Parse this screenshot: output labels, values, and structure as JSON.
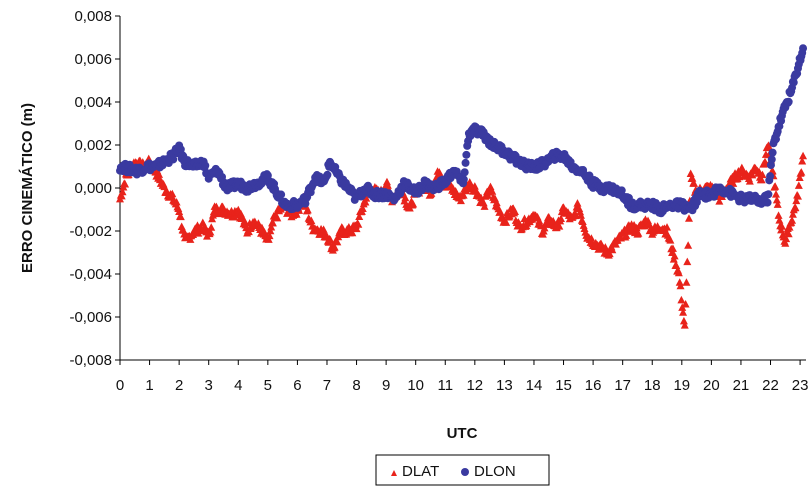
{
  "chart_data": {
    "type": "scatter",
    "xlabel": "UTC",
    "ylabel": "ERRO CINEMÁTICO (m)",
    "xlim": [
      0,
      23.2
    ],
    "ylim": [
      -0.008,
      0.008
    ],
    "xticks": [
      "0",
      "1",
      "2",
      "3",
      "4",
      "5",
      "6",
      "7",
      "8",
      "9",
      "10",
      "11",
      "12",
      "13",
      "14",
      "15",
      "16",
      "17",
      "18",
      "19",
      "20",
      "21",
      "22",
      "23"
    ],
    "yticks": [
      "0,008",
      "0,006",
      "0,004",
      "0,002",
      "0,000",
      "-0,002",
      "-0,004",
      "-0,006",
      "-0,008"
    ],
    "ytick_values": [
      0.008,
      0.006,
      0.004,
      0.002,
      0.0,
      -0.002,
      -0.004,
      -0.006,
      -0.008
    ],
    "grid": false,
    "legend_position": "bottom-center",
    "series": [
      {
        "name": "DLAT",
        "marker": "triangle",
        "color": "#e8231b",
        "x": [
          0,
          0.2,
          0.5,
          0.8,
          1.0,
          1.2,
          1.5,
          1.8,
          2.0,
          2.2,
          2.5,
          2.8,
          3.0,
          3.2,
          3.5,
          3.8,
          4.0,
          4.3,
          4.5,
          4.8,
          5.0,
          5.2,
          5.5,
          5.8,
          6.0,
          6.2,
          6.5,
          6.8,
          7.0,
          7.2,
          7.5,
          7.8,
          8.0,
          8.3,
          8.5,
          8.8,
          9.0,
          9.2,
          9.5,
          9.8,
          10.0,
          10.3,
          10.5,
          10.8,
          11.0,
          11.2,
          11.5,
          11.8,
          12.0,
          12.3,
          12.5,
          12.8,
          13.0,
          13.3,
          13.5,
          13.8,
          14.0,
          14.3,
          14.5,
          14.8,
          15.0,
          15.3,
          15.5,
          15.8,
          16.0,
          16.3,
          16.5,
          16.8,
          17.0,
          17.3,
          17.5,
          17.8,
          18.0,
          18.3,
          18.5,
          18.7,
          18.9,
          19.1,
          19.3,
          19.5,
          19.7,
          20.0,
          20.3,
          20.5,
          20.8,
          21.0,
          21.3,
          21.5,
          21.7,
          21.9,
          22.1,
          22.3,
          22.5,
          22.7,
          22.9,
          23.1
        ],
        "y": [
          -0.0005,
          0.0005,
          0.0012,
          0.001,
          0.0012,
          0.0008,
          0.0,
          -0.0005,
          -0.001,
          -0.0025,
          -0.002,
          -0.0018,
          -0.0022,
          -0.001,
          -0.001,
          -0.0012,
          -0.001,
          -0.002,
          -0.0015,
          -0.002,
          -0.0025,
          -0.0015,
          -0.0008,
          -0.0012,
          -0.001,
          -0.0005,
          -0.0018,
          -0.002,
          -0.0022,
          -0.0028,
          -0.002,
          -0.002,
          -0.0018,
          -0.0005,
          0.0,
          -0.0003,
          0.0002,
          -0.0005,
          0.0,
          -0.001,
          -0.0002,
          0.0002,
          -0.0002,
          0.0008,
          0.0002,
          0.0,
          -0.0005,
          0.0002,
          0.0,
          -0.0008,
          0.0,
          -0.001,
          -0.0015,
          -0.001,
          -0.0018,
          -0.0015,
          -0.0012,
          -0.002,
          -0.0015,
          -0.0018,
          -0.001,
          -0.0015,
          -0.0008,
          -0.0022,
          -0.0025,
          -0.0028,
          -0.003,
          -0.0025,
          -0.0022,
          -0.0018,
          -0.002,
          -0.0015,
          -0.002,
          -0.0018,
          -0.002,
          -0.003,
          -0.004,
          -0.0065,
          0.0005,
          -0.0003,
          0.0,
          0.0,
          -0.0005,
          0.0,
          0.0005,
          0.0008,
          0.0005,
          0.001,
          0.0005,
          0.002,
          0.0005,
          -0.0015,
          -0.0025,
          -0.0015,
          -0.0005,
          0.0015
        ]
      },
      {
        "name": "DLON",
        "marker": "circle",
        "color": "#3a3aa0",
        "x": [
          0,
          0.3,
          0.6,
          0.9,
          1.2,
          1.5,
          1.8,
          2.0,
          2.2,
          2.5,
          2.8,
          3.0,
          3.3,
          3.6,
          4.0,
          4.3,
          4.6,
          5.0,
          5.3,
          5.6,
          6.0,
          6.3,
          6.6,
          6.9,
          7.1,
          7.4,
          7.7,
          8.0,
          8.3,
          8.6,
          9.0,
          9.3,
          9.6,
          10.0,
          10.3,
          10.6,
          11.0,
          11.3,
          11.6,
          11.8,
          12.0,
          12.3,
          12.6,
          12.9,
          13.2,
          13.5,
          13.8,
          14.1,
          14.4,
          14.7,
          15.0,
          15.3,
          15.6,
          16.0,
          16.3,
          16.6,
          17.0,
          17.3,
          17.6,
          18.0,
          18.3,
          18.6,
          19.0,
          19.3,
          19.6,
          20.0,
          20.3,
          20.6,
          21.0,
          21.3,
          21.6,
          21.9,
          22.1,
          22.3,
          22.5,
          22.7,
          22.9,
          23.1
        ],
        "y": [
          0.001,
          0.0009,
          0.0008,
          0.001,
          0.001,
          0.0012,
          0.0015,
          0.0018,
          0.0012,
          0.001,
          0.0012,
          0.0005,
          0.0008,
          0.0,
          0.0002,
          0.0,
          0.0002,
          0.0005,
          -0.0002,
          -0.0008,
          -0.0008,
          -0.0005,
          0.0005,
          0.0002,
          0.0012,
          0.0005,
          0.0,
          -0.0005,
          0.0,
          -0.0003,
          -0.0003,
          -0.0005,
          0.0002,
          -0.0002,
          0.0002,
          0.0,
          0.0003,
          0.0008,
          0.0002,
          0.0025,
          0.0027,
          0.0025,
          0.002,
          0.0018,
          0.0015,
          0.0012,
          0.001,
          0.001,
          0.0012,
          0.0015,
          0.0015,
          0.001,
          0.0008,
          0.0002,
          0.0,
          0.0,
          -0.0003,
          -0.0008,
          -0.0008,
          -0.0008,
          -0.001,
          -0.0008,
          -0.0008,
          -0.001,
          -0.0003,
          -0.0003,
          0.0,
          -0.0002,
          -0.0005,
          -0.0005,
          -0.0006,
          -0.0005,
          0.002,
          0.003,
          0.0038,
          0.0045,
          0.0055,
          0.0065
        ]
      }
    ]
  }
}
